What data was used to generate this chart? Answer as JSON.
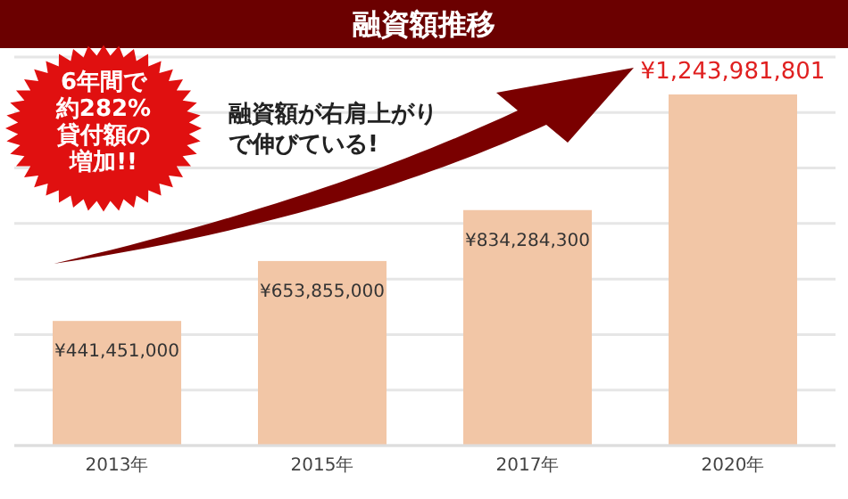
{
  "chart_data": {
    "type": "bar",
    "title": "融資額推移",
    "categories": [
      "2013年",
      "2015年",
      "2017年",
      "2020年"
    ],
    "values": [
      441451000,
      653855000,
      834284300,
      1243981801
    ],
    "value_labels": [
      "¥441,451,000",
      "¥653,855,000",
      "¥834,284,300",
      "¥1,243,981,801"
    ],
    "color": "#f2c6a6",
    "grid": true,
    "annotations": [
      "6年間で約282%貸付額の増加!!",
      "融資額が右肩上がりで伸びている!"
    ]
  }
}
